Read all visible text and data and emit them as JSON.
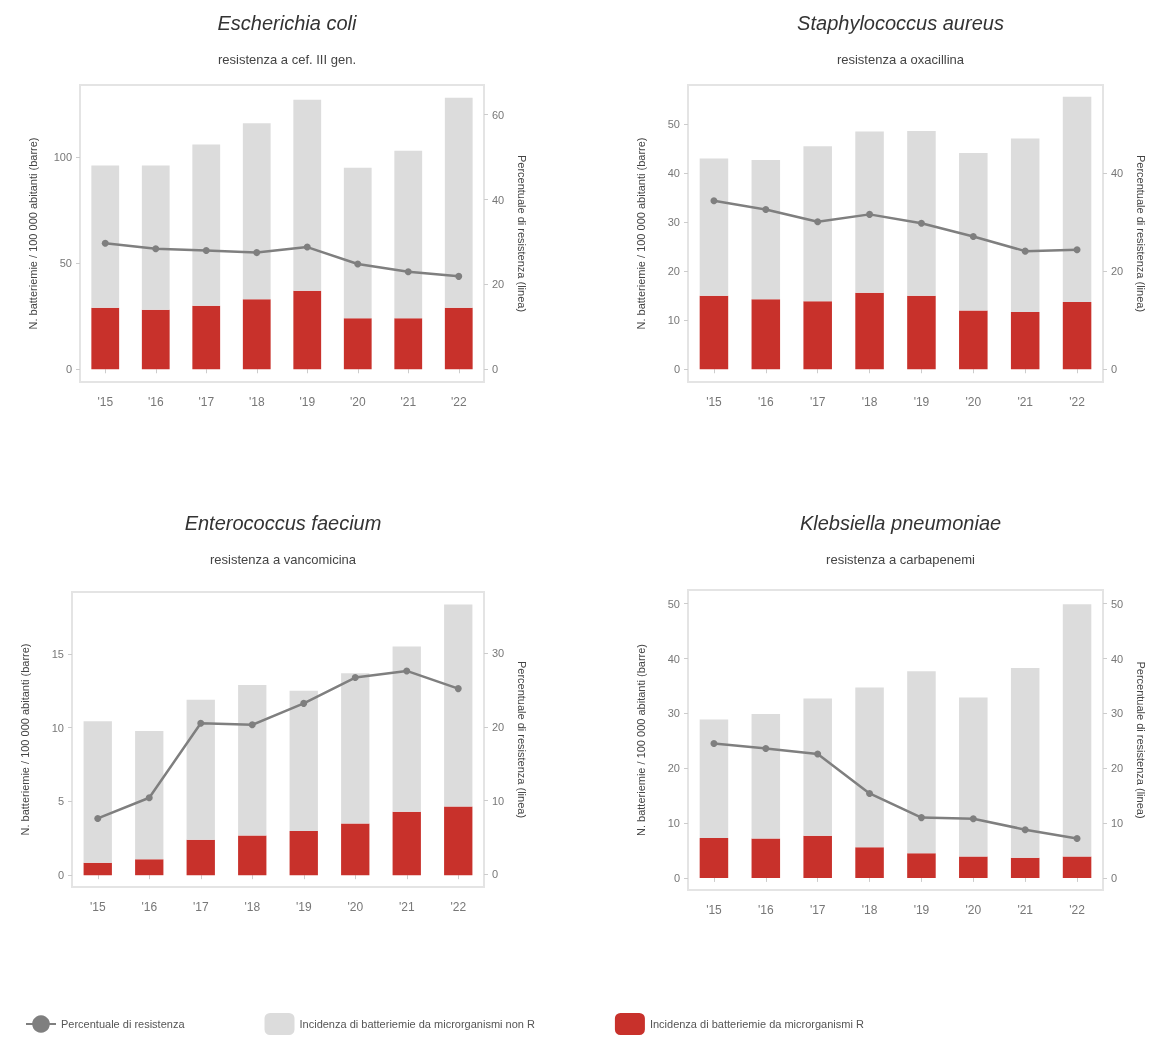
{
  "chart_data": [
    {
      "type": "bar",
      "title": "Escherichia coli",
      "subtitle": "resistenza a cef. III gen.",
      "ylabel": "N. batteriemie / 100 000 abitanti (barre)",
      "y2label": "Percentuale di resistenza (linea)",
      "stacked": true,
      "categories": [
        "'15",
        "'16",
        "'17",
        "'18",
        "'19",
        "'20",
        "'21",
        "'22"
      ],
      "ylim": [
        -6,
        134
      ],
      "yticks": [
        0,
        50,
        100
      ],
      "y2lim": [
        -3,
        67
      ],
      "y2ticks": [
        0,
        20,
        40,
        60
      ],
      "grid": false,
      "marker": "circle",
      "series": [
        {
          "color": "#c8312b",
          "values": [
            29,
            28,
            30,
            33,
            37,
            24,
            24,
            29
          ]
        },
        {
          "color": "#dcdcdc",
          "values": [
            67,
            68,
            76,
            83,
            90,
            71,
            79,
            99
          ]
        },
        {
          "type": "line",
          "axis": "y2",
          "color": "#7f7f7f",
          "values": [
            29.7,
            28.4,
            28,
            27.5,
            28.8,
            24.8,
            23,
            21.9
          ]
        }
      ]
    },
    {
      "type": "bar",
      "title": "Staphylococcus aureus",
      "subtitle": "resistenza a oxacillina",
      "ylabel": "N. batteriemie / 100 000 abitanti (barre)",
      "y2label": "Percentuale di resistenza (linea)",
      "stacked": true,
      "categories": [
        "'15",
        "'16",
        "'17",
        "'18",
        "'19",
        "'20",
        "'21",
        "'22"
      ],
      "ylim": [
        -2.6,
        58
      ],
      "yticks": [
        0,
        10,
        20,
        30,
        40,
        50
      ],
      "y2lim": [
        -2.6,
        58
      ],
      "y2ticks": [
        0,
        20,
        40
      ],
      "grid": false,
      "marker": "circle",
      "series": [
        {
          "color": "#c8312b",
          "values": [
            15,
            14.3,
            13.9,
            15.6,
            15,
            12,
            11.7,
            13.7
          ]
        },
        {
          "color": "#dcdcdc",
          "values": [
            28,
            28.4,
            31.6,
            32.9,
            33.6,
            32.1,
            35.4,
            41.9
          ]
        },
        {
          "type": "line",
          "axis": "y2",
          "color": "#7f7f7f",
          "values": [
            34.4,
            32.6,
            30.1,
            31.6,
            29.8,
            27.1,
            24.1,
            24.4
          ]
        }
      ]
    },
    {
      "type": "bar",
      "title": "Enterococcus faecium",
      "subtitle": "resistenza a vancomicina",
      "ylabel": "N. batteriemie / 100 000 abitanti (barre)",
      "y2label": "Percentuale di resistenza (linea)",
      "stacked": true,
      "categories": [
        "'15",
        "'16",
        "'17",
        "'18",
        "'19",
        "'20",
        "'21",
        "'22"
      ],
      "ylim": [
        -0.8,
        19.2
      ],
      "yticks": [
        0,
        5,
        10,
        15
      ],
      "y2lim": [
        -1.7,
        38.3
      ],
      "y2ticks": [
        0,
        10,
        20,
        30
      ],
      "grid": false,
      "marker": "circle",
      "legend": "bottom",
      "series": [
        {
          "name": "Incidenza di batteriemie da microrganismi R",
          "color": "#c8312b",
          "values": [
            0.84,
            1.08,
            2.4,
            2.7,
            3.0,
            3.5,
            4.3,
            4.65
          ]
        },
        {
          "name": "Incidenza di batteriemie da microrganismi non R",
          "color": "#dcdcdc",
          "values": [
            9.6,
            8.7,
            9.5,
            10.2,
            9.5,
            10.2,
            11.2,
            13.7
          ]
        },
        {
          "name": "Percentuale di resistenza",
          "type": "line",
          "axis": "y2",
          "color": "#7f7f7f",
          "values": [
            7.6,
            10.4,
            20.5,
            20.3,
            23.2,
            26.7,
            27.6,
            25.2
          ]
        }
      ]
    },
    {
      "type": "bar",
      "title": "Klebsiella pneumoniae",
      "subtitle": "resistenza a carbapenemi",
      "ylabel": "N. batteriemie / 100 000 abitanti (barre)",
      "y2label": "Percentuale di resistenza (linea)",
      "stacked": true,
      "categories": [
        "'15",
        "'16",
        "'17",
        "'18",
        "'19",
        "'20",
        "'21",
        "'22"
      ],
      "ylim": [
        -2.2,
        52.5
      ],
      "yticks": [
        0,
        10,
        20,
        30,
        40,
        50
      ],
      "y2lim": [
        -2.2,
        52.5
      ],
      "y2ticks": [
        0,
        10,
        20,
        30,
        40,
        50
      ],
      "grid": false,
      "marker": "circle",
      "series": [
        {
          "color": "#c8312b",
          "values": [
            7.3,
            7.2,
            7.7,
            5.6,
            4.5,
            3.9,
            3.7,
            3.9
          ]
        },
        {
          "color": "#dcdcdc",
          "values": [
            21.6,
            22.7,
            25,
            29.1,
            33.2,
            29,
            34.6,
            46
          ]
        },
        {
          "type": "line",
          "axis": "y2",
          "color": "#7f7f7f",
          "values": [
            24.5,
            23.6,
            22.6,
            15.4,
            11,
            10.8,
            8.8,
            7.2
          ]
        }
      ]
    }
  ]
}
